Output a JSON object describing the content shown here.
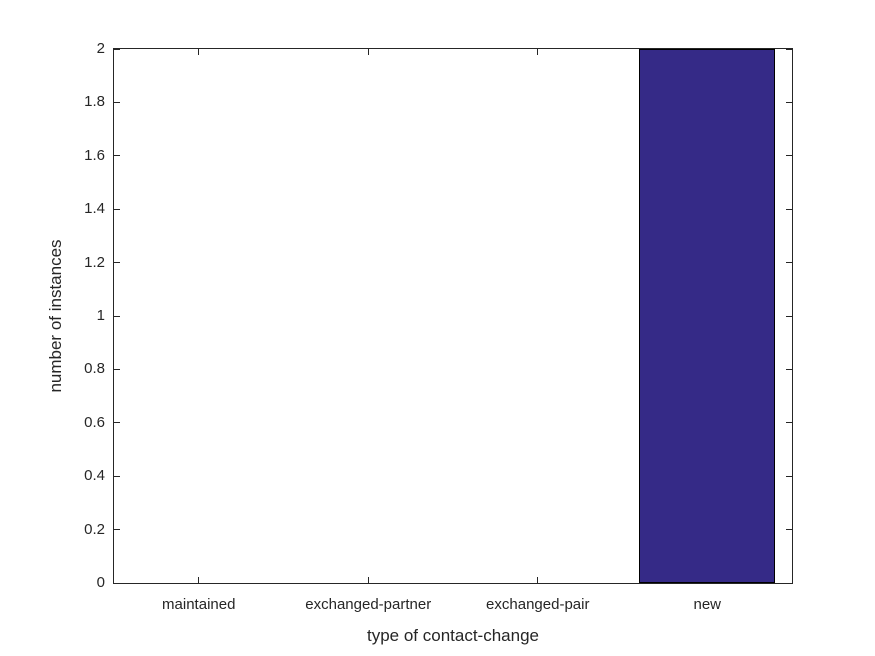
{
  "chart_data": {
    "type": "bar",
    "categories": [
      "maintained",
      "exchanged-partner",
      "exchanged-pair",
      "new"
    ],
    "values": [
      0,
      0,
      0,
      2
    ],
    "title": "",
    "xlabel": "type of contact-change",
    "ylabel": "number of instances",
    "ylim": [
      0,
      2
    ],
    "yticks": [
      0,
      0.2,
      0.4,
      0.6,
      0.8,
      1,
      1.2,
      1.4,
      1.6,
      1.8,
      2
    ],
    "ytick_labels": [
      "0",
      "0.2",
      "0.4",
      "0.6",
      "0.8",
      "1",
      "1.2",
      "1.4",
      "1.6",
      "1.8",
      "2"
    ],
    "bar_width_fraction": 0.8,
    "grid": false,
    "legend": null,
    "tick_direction": "in",
    "colors": {
      "bar_fill": "#352A87",
      "bar_edge": "#000000",
      "axis": "#262626",
      "text": "#262626",
      "background": "#FFFFFF"
    }
  }
}
